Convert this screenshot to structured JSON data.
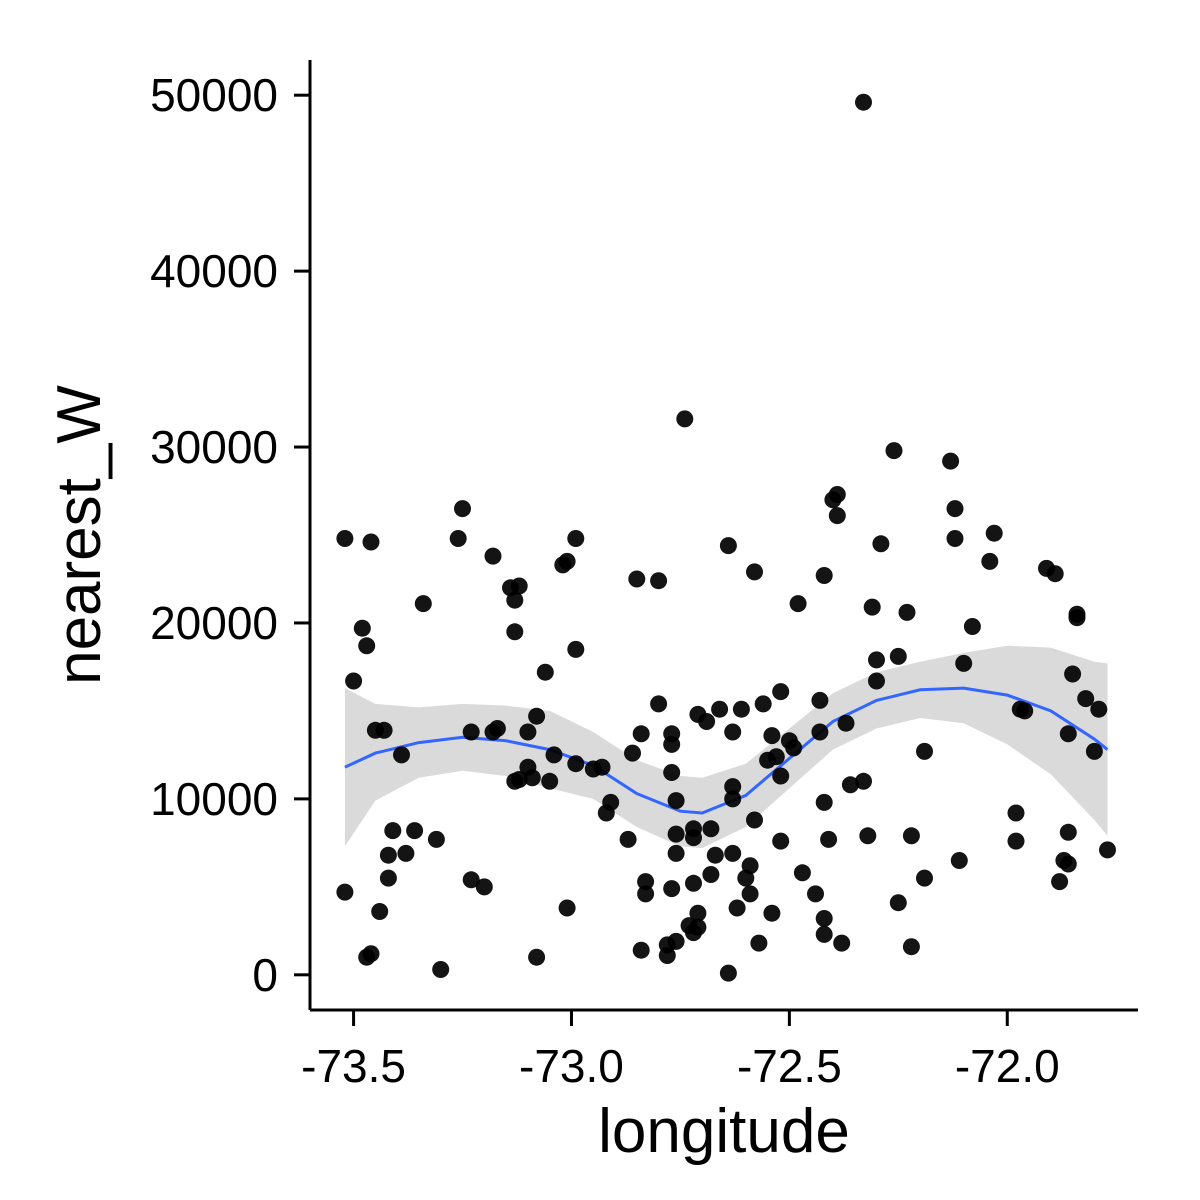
{
  "chart_data": {
    "type": "scatter",
    "title": "",
    "xlabel": "longitude",
    "ylabel": "nearest_W",
    "xlim": [
      -73.6,
      -71.7
    ],
    "ylim": [
      -2000,
      52000
    ],
    "x_ticks": [
      -73.5,
      -73.0,
      -72.5,
      -72.0
    ],
    "x_tick_labels": [
      "-73.5",
      "-73.0",
      "-72.5",
      "-72.0"
    ],
    "y_ticks": [
      0,
      10000,
      20000,
      30000,
      40000,
      50000
    ],
    "y_tick_labels": [
      "0",
      "10000",
      "20000",
      "30000",
      "40000",
      "50000"
    ],
    "grid": false,
    "legend": "none",
    "colors": {
      "points": "#000000",
      "smooth_line": "#3366ff",
      "confidence_band": "#d3d3d3",
      "axis": "#000000"
    },
    "points": [
      [
        -73.52,
        24800
      ],
      [
        -73.5,
        16700
      ],
      [
        -73.52,
        4700
      ],
      [
        -73.48,
        19700
      ],
      [
        -73.47,
        18700
      ],
      [
        -73.46,
        24600
      ],
      [
        -73.45,
        13900
      ],
      [
        -73.43,
        13900
      ],
      [
        -73.47,
        1000
      ],
      [
        -73.46,
        1200
      ],
      [
        -73.44,
        3600
      ],
      [
        -73.42,
        6800
      ],
      [
        -73.42,
        5500
      ],
      [
        -73.41,
        8200
      ],
      [
        -73.39,
        12500
      ],
      [
        -73.38,
        6900
      ],
      [
        -73.36,
        8200
      ],
      [
        -73.34,
        21100
      ],
      [
        -73.31,
        7700
      ],
      [
        -73.3,
        300
      ],
      [
        -73.26,
        24800
      ],
      [
        -73.25,
        26500
      ],
      [
        -73.23,
        13800
      ],
      [
        -73.23,
        5400
      ],
      [
        -73.2,
        5000
      ],
      [
        -73.18,
        23800
      ],
      [
        -73.18,
        13800
      ],
      [
        -73.17,
        14000
      ],
      [
        -73.14,
        22000
      ],
      [
        -73.13,
        21300
      ],
      [
        -73.13,
        19500
      ],
      [
        -73.12,
        22100
      ],
      [
        -73.13,
        11000
      ],
      [
        -73.12,
        11100
      ],
      [
        -73.1,
        13800
      ],
      [
        -73.1,
        11800
      ],
      [
        -73.09,
        11200
      ],
      [
        -73.08,
        14700
      ],
      [
        -73.08,
        1000
      ],
      [
        -73.06,
        17200
      ],
      [
        -73.05,
        11000
      ],
      [
        -73.04,
        12500
      ],
      [
        -73.02,
        23300
      ],
      [
        -73.01,
        23500
      ],
      [
        -73.01,
        3800
      ],
      [
        -72.99,
        24800
      ],
      [
        -72.99,
        18500
      ],
      [
        -72.99,
        12000
      ],
      [
        -72.95,
        11700
      ],
      [
        -72.93,
        11800
      ],
      [
        -72.92,
        9200
      ],
      [
        -72.91,
        9800
      ],
      [
        -72.87,
        7700
      ],
      [
        -72.86,
        12600
      ],
      [
        -72.85,
        22500
      ],
      [
        -72.84,
        13700
      ],
      [
        -72.84,
        1400
      ],
      [
        -72.83,
        5300
      ],
      [
        -72.83,
        4600
      ],
      [
        -72.8,
        22400
      ],
      [
        -72.8,
        15400
      ],
      [
        -72.77,
        13700
      ],
      [
        -72.77,
        13100
      ],
      [
        -72.77,
        11500
      ],
      [
        -72.76,
        9900
      ],
      [
        -72.76,
        8000
      ],
      [
        -72.76,
        6900
      ],
      [
        -72.77,
        4900
      ],
      [
        -72.78,
        1700
      ],
      [
        -72.78,
        1100
      ],
      [
        -72.76,
        1900
      ],
      [
        -72.74,
        31600
      ],
      [
        -72.73,
        2800
      ],
      [
        -72.72,
        8300
      ],
      [
        -72.72,
        7800
      ],
      [
        -72.72,
        5200
      ],
      [
        -72.72,
        2400
      ],
      [
        -72.71,
        3500
      ],
      [
        -72.71,
        2700
      ],
      [
        -72.71,
        14800
      ],
      [
        -72.69,
        14400
      ],
      [
        -72.68,
        8300
      ],
      [
        -72.68,
        5700
      ],
      [
        -72.67,
        6800
      ],
      [
        -72.66,
        15100
      ],
      [
        -72.64,
        24400
      ],
      [
        -72.64,
        100
      ],
      [
        -72.63,
        13800
      ],
      [
        -72.63,
        10700
      ],
      [
        -72.63,
        10000
      ],
      [
        -72.63,
        6900
      ],
      [
        -72.62,
        3800
      ],
      [
        -72.61,
        15100
      ],
      [
        -72.6,
        5500
      ],
      [
        -72.59,
        6200
      ],
      [
        -72.59,
        4600
      ],
      [
        -72.58,
        22900
      ],
      [
        -72.58,
        8800
      ],
      [
        -72.57,
        1800
      ],
      [
        -72.56,
        15400
      ],
      [
        -72.55,
        12200
      ],
      [
        -72.54,
        13600
      ],
      [
        -72.53,
        12400
      ],
      [
        -72.52,
        16100
      ],
      [
        -72.52,
        11300
      ],
      [
        -72.52,
        7600
      ],
      [
        -72.54,
        3500
      ],
      [
        -72.5,
        13300
      ],
      [
        -72.49,
        12900
      ],
      [
        -72.48,
        21100
      ],
      [
        -72.47,
        5800
      ],
      [
        -72.44,
        4600
      ],
      [
        -72.43,
        15600
      ],
      [
        -72.43,
        13800
      ],
      [
        -72.42,
        22700
      ],
      [
        -72.42,
        9800
      ],
      [
        -72.42,
        3200
      ],
      [
        -72.42,
        2300
      ],
      [
        -72.41,
        7700
      ],
      [
        -72.4,
        27000
      ],
      [
        -72.39,
        27300
      ],
      [
        -72.39,
        26100
      ],
      [
        -72.38,
        1800
      ],
      [
        -72.37,
        14300
      ],
      [
        -72.36,
        10800
      ],
      [
        -72.33,
        11000
      ],
      [
        -72.33,
        49600
      ],
      [
        -72.32,
        7900
      ],
      [
        -72.31,
        20900
      ],
      [
        -72.3,
        16700
      ],
      [
        -72.3,
        17900
      ],
      [
        -72.29,
        24500
      ],
      [
        -72.26,
        29800
      ],
      [
        -72.25,
        18100
      ],
      [
        -72.25,
        4100
      ],
      [
        -72.23,
        20600
      ],
      [
        -72.22,
        7900
      ],
      [
        -72.22,
        1600
      ],
      [
        -72.19,
        12700
      ],
      [
        -72.19,
        5500
      ],
      [
        -72.13,
        29200
      ],
      [
        -72.12,
        24800
      ],
      [
        -72.12,
        26500
      ],
      [
        -72.1,
        17700
      ],
      [
        -72.11,
        6500
      ],
      [
        -72.08,
        19800
      ],
      [
        -72.03,
        25100
      ],
      [
        -72.04,
        23500
      ],
      [
        -71.98,
        9200
      ],
      [
        -71.98,
        7600
      ],
      [
        -71.97,
        15100
      ],
      [
        -71.96,
        15000
      ],
      [
        -71.91,
        23100
      ],
      [
        -71.89,
        22800
      ],
      [
        -71.88,
        5300
      ],
      [
        -71.87,
        6500
      ],
      [
        -71.86,
        6300
      ],
      [
        -71.86,
        8100
      ],
      [
        -71.86,
        13700
      ],
      [
        -71.85,
        17100
      ],
      [
        -71.84,
        20500
      ],
      [
        -71.84,
        20300
      ],
      [
        -71.82,
        15700
      ],
      [
        -71.8,
        12700
      ],
      [
        -71.79,
        15100
      ],
      [
        -71.77,
        7100
      ]
    ],
    "smooth": {
      "x": [
        -73.52,
        -73.45,
        -73.35,
        -73.25,
        -73.15,
        -73.05,
        -72.95,
        -72.85,
        -72.75,
        -72.7,
        -72.6,
        -72.5,
        -72.4,
        -72.3,
        -72.2,
        -72.1,
        -72.0,
        -71.9,
        -71.8,
        -71.77
      ],
      "y": [
        11800,
        12600,
        13200,
        13500,
        13300,
        12800,
        11900,
        10300,
        9300,
        9200,
        10200,
        12300,
        14400,
        15600,
        16200,
        16300,
        15900,
        15000,
        13400,
        12800
      ],
      "lower": [
        7300,
        9900,
        11200,
        11600,
        11300,
        10600,
        10000,
        8400,
        7300,
        7200,
        8400,
        10600,
        12800,
        14000,
        14600,
        14300,
        13100,
        11400,
        8800,
        7900
      ],
      "upper": [
        16300,
        15400,
        15200,
        15400,
        15300,
        15000,
        13800,
        12200,
        11300,
        11200,
        12000,
        14000,
        16000,
        17200,
        17800,
        18300,
        18700,
        18600,
        17800,
        17700
      ]
    }
  }
}
